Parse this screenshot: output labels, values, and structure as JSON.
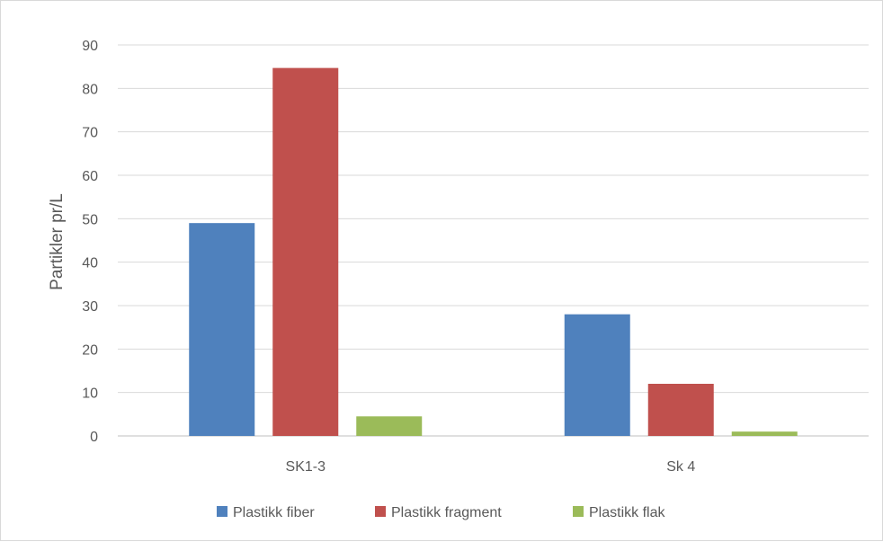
{
  "chart_data": {
    "type": "bar",
    "title": "",
    "xlabel": "",
    "ylabel": "Partikler pr/L",
    "ylim": [
      0,
      90
    ],
    "yticks": [
      0,
      10,
      20,
      30,
      40,
      50,
      60,
      70,
      80,
      90
    ],
    "grid": true,
    "legend_position": "bottom",
    "categories": [
      "SK1-3",
      "Sk 4"
    ],
    "series": [
      {
        "name": "Plastikk fiber",
        "color": "#4f81bd",
        "values": [
          49,
          28
        ]
      },
      {
        "name": "Plastikk fragment",
        "color": "#c0504d",
        "values": [
          84.7,
          12
        ]
      },
      {
        "name": "Plastikk flak",
        "color": "#9bbb59",
        "values": [
          4.5,
          1
        ]
      }
    ]
  }
}
